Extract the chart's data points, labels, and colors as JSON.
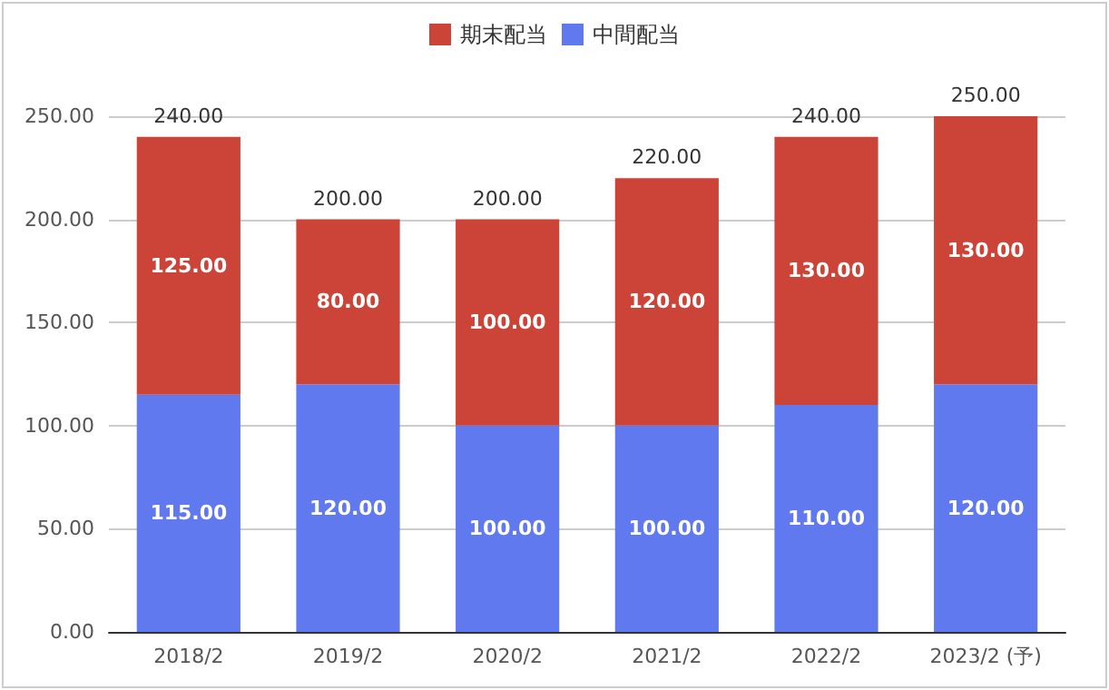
{
  "chart_data": {
    "type": "bar",
    "stacked": true,
    "categories": [
      "2018/2",
      "2019/2",
      "2020/2",
      "2021/2",
      "2022/2",
      "2023/2 (予)"
    ],
    "series": [
      {
        "name": "中間配当",
        "color": "#6079ef",
        "values": [
          115,
          120,
          100,
          100,
          110,
          120
        ],
        "value_labels": [
          "115.00",
          "120.00",
          "100.00",
          "100.00",
          "110.00",
          "120.00"
        ]
      },
      {
        "name": "期末配当",
        "color": "#cc4438",
        "values": [
          125,
          80,
          100,
          120,
          130,
          130
        ],
        "value_labels": [
          "125.00",
          "80.00",
          "100.00",
          "120.00",
          "130.00",
          "130.00"
        ]
      }
    ],
    "totals": [
      "240.00",
      "200.00",
      "200.00",
      "220.00",
      "240.00",
      "250.00"
    ],
    "ylim": [
      0,
      250
    ],
    "yticks": [
      {
        "value": 0,
        "label": "0.00"
      },
      {
        "value": 50,
        "label": "50.00"
      },
      {
        "value": 100,
        "label": "100.00"
      },
      {
        "value": 150,
        "label": "150.00"
      },
      {
        "value": 200,
        "label": "200.00"
      },
      {
        "value": 250,
        "label": "250.00"
      }
    ],
    "grid": "y",
    "legend": "top"
  }
}
